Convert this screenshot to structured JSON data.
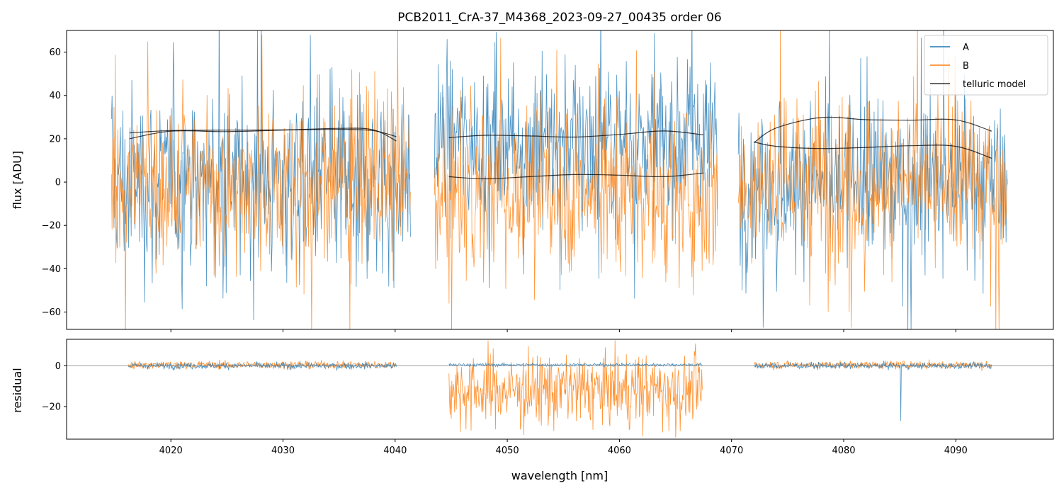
{
  "chart_data": {
    "type": "line",
    "title": "PCB2011_CrA-37_M4368_2023-09-27_00435  order 06",
    "colors": {
      "A": "#1f77b4",
      "B": "#ff7f0e",
      "telluric": "#000000",
      "zero_line": "#808080",
      "frame": "#000000"
    },
    "legend": {
      "location": "top-right",
      "entries": [
        {
          "name": "A",
          "color": "#1f77b4"
        },
        {
          "name": "B",
          "color": "#ff7f0e"
        },
        {
          "name": "telluric model",
          "color": "#000000"
        }
      ]
    },
    "xlabel": "wavelength [nm]",
    "xlim": [
      4010.7,
      4098.7
    ],
    "xticks": [
      4020,
      4030,
      4040,
      4050,
      4060,
      4070,
      4080,
      4090
    ],
    "xtick_labels": [
      "4020",
      "4030",
      "4040",
      "4050",
      "4060",
      "4070",
      "4080",
      "4090"
    ],
    "top_panel": {
      "ylabel": "flux [ADU]",
      "ylim": [
        -68,
        70
      ],
      "yticks": [
        -60,
        -40,
        -20,
        0,
        20,
        40,
        60
      ],
      "ytick_labels": [
        "−60",
        "−40",
        "−20",
        "0",
        "20",
        "40",
        "60"
      ],
      "segments": [
        {
          "x_range": [
            4014.7,
            4041.4
          ],
          "A": {
            "center": 0,
            "spread": 34,
            "extreme": 90
          },
          "B": {
            "center": 0,
            "spread": 30,
            "extreme": 80
          },
          "telluric_A": {
            "x": [
              4016.3,
              4020,
              4025,
              4030,
              4035,
              4038,
              4040.1
            ],
            "y": [
              20.0,
              23.5,
              23.3,
              24.0,
              24.8,
              24.2,
              19.0
            ]
          },
          "telluric_B": {
            "x": [
              4016.3,
              4020,
              4025,
              4030,
              4035,
              4038,
              4040.1
            ],
            "y": [
              22.7,
              23.8,
              24.0,
              24.1,
              24.3,
              23.8,
              21.0
            ]
          }
        },
        {
          "x_range": [
            4043.5,
            4068.8
          ],
          "A": {
            "center": 20,
            "spread": 28,
            "extreme": 75
          },
          "B": {
            "center": -5,
            "spread": 30,
            "extreme": 75
          },
          "telluric_A": {
            "x": [
              4044.8,
              4048,
              4052,
              4056,
              4060,
              4064,
              4067.5
            ],
            "y": [
              20.5,
              21.6,
              21.3,
              20.8,
              22.0,
              23.6,
              21.8
            ]
          },
          "telluric_B": {
            "x": [
              4044.8,
              4048,
              4052,
              4056,
              4060,
              4064,
              4067.5
            ],
            "y": [
              2.5,
              1.5,
              2.5,
              3.5,
              3.2,
              2.5,
              4.2
            ]
          }
        },
        {
          "x_range": [
            4070.6,
            4094.6
          ],
          "A": {
            "center": 0,
            "spread": 30,
            "extreme": 80
          },
          "B": {
            "center": 0,
            "spread": 30,
            "extreme": 80
          },
          "telluric_A": {
            "x": [
              4072.0,
              4074,
              4078,
              4082,
              4086,
              4090,
              4093.2
            ],
            "y": [
              18.2,
              25.0,
              29.8,
              28.8,
              28.6,
              28.7,
              23.5
            ]
          },
          "telluric_B": {
            "x": [
              4072.0,
              4074,
              4078,
              4082,
              4086,
              4090,
              4093.2
            ],
            "y": [
              18.5,
              16.5,
              15.5,
              16.0,
              16.8,
              16.5,
              11.0
            ]
          }
        }
      ]
    },
    "bottom_panel": {
      "ylabel": "residual",
      "ylim": [
        -36,
        13
      ],
      "yticks": [
        -20,
        0
      ],
      "ytick_labels": [
        "−20",
        "0"
      ],
      "zero_line": 0,
      "segments": [
        {
          "x_range": [
            4016.2,
            4040.2
          ],
          "A": {
            "center": 0,
            "spread": 1.2
          },
          "B": {
            "center": 0.5,
            "spread": 1.5
          }
        },
        {
          "x_range": [
            4044.8,
            4067.4
          ],
          "A": {
            "center": 0.5,
            "spread": 0.6
          },
          "B": {
            "center": -12,
            "spread": 14
          }
        },
        {
          "x_range": [
            4072.0,
            4093.2
          ],
          "A": {
            "center": 0,
            "spread": 1.2,
            "dip": {
              "x": 4085.1,
              "y": -27
            }
          },
          "B": {
            "center": 0.5,
            "spread": 1.5
          }
        }
      ]
    }
  }
}
